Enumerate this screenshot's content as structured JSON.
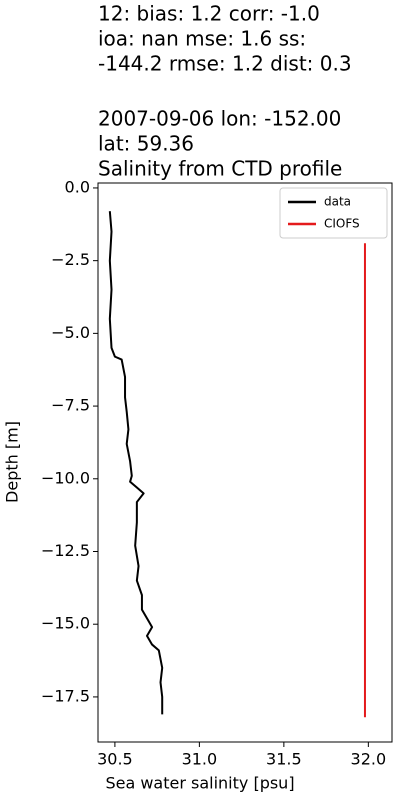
{
  "chart_data": {
    "type": "line",
    "title": [
      "12: bias: 1.2  corr: -1.0",
      "ioa: nan  mse: 1.6  ss:",
      "-144.2  rmse: 1.2  dist: 0.3",
      "2007-09-06 lon: -152.00",
      "lat: 59.36",
      "Salinity from CTD profile"
    ],
    "x_label": "Sea water salinity [psu]",
    "y_label": "Depth [m]",
    "xlim": [
      30.4,
      32.14
    ],
    "ylim": [
      -19.05,
      0.17
    ],
    "xticks": [
      30.5,
      {
        "value": 31,
        "label": "31.0"
      },
      31.5,
      {
        "value": 32,
        "label": "32.0"
      }
    ],
    "yticks": [
      {
        "value": 0,
        "label": "0.0"
      },
      {
        "value": -2.5,
        "label": "−2.5"
      },
      {
        "value": -5,
        "label": "−5.0"
      },
      {
        "value": -7.5,
        "label": "−7.5"
      },
      {
        "value": -10,
        "label": "−10.0"
      },
      {
        "value": -12.5,
        "label": "−12.5"
      },
      {
        "value": -15,
        "label": "−15.0"
      },
      {
        "value": -17.5,
        "label": "−17.5"
      }
    ],
    "legend": "upper right",
    "series": [
      {
        "name": "data",
        "color": "#000000",
        "x": [
          30.47,
          30.48,
          30.47,
          30.48,
          30.47,
          30.48,
          30.5,
          30.54,
          30.56,
          30.56,
          30.57,
          30.58,
          30.57,
          30.59,
          30.6,
          30.59,
          30.63,
          30.67,
          30.63,
          30.63,
          30.62,
          30.64,
          30.63,
          30.66,
          30.66,
          30.7,
          30.72,
          30.69,
          30.72,
          30.76,
          30.78,
          30.77,
          30.78,
          30.78
        ],
        "values": [
          -0.8,
          -1.5,
          -2.5,
          -3.5,
          -4.5,
          -5.5,
          -5.8,
          -5.9,
          -6.5,
          -7.2,
          -7.7,
          -8.3,
          -8.8,
          -9.4,
          -9.9,
          -10.1,
          -10.3,
          -10.5,
          -10.8,
          -11.5,
          -12.3,
          -13,
          -13.5,
          -14,
          -14.5,
          -14.9,
          -15.1,
          -15.4,
          -15.7,
          -15.9,
          -16.5,
          -17,
          -17.5,
          -18.1
        ]
      },
      {
        "name": "CIOFS",
        "color": "#e41a1c",
        "x": [
          31.98,
          31.98
        ],
        "values": [
          -1.9,
          -18.2
        ]
      }
    ]
  }
}
